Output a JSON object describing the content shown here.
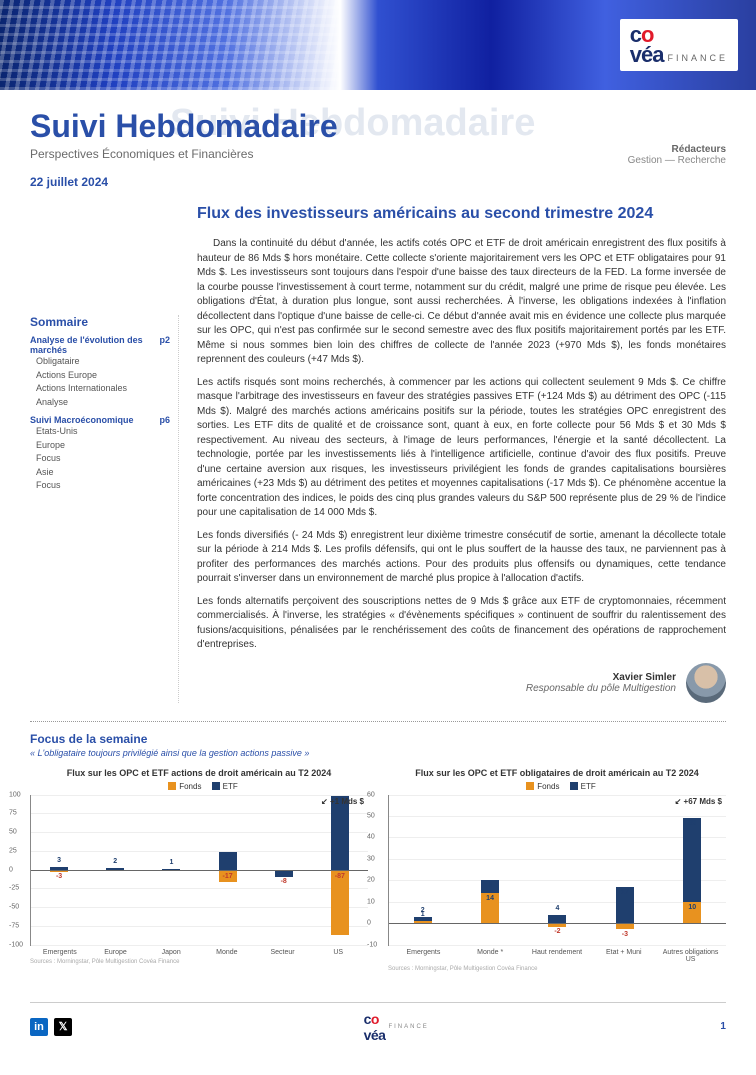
{
  "brand": {
    "name": "covéa",
    "suffix": "FINANCE"
  },
  "header": {
    "title": "Suivi Hebdomadaire",
    "ghost_title": "Suivi Hebdomadaire",
    "subtitle": "Perspectives Économiques et Financières",
    "date": "22 juillet 2024",
    "redacteurs_label": "Rédacteurs",
    "redacteurs_line": "Gestion — Recherche"
  },
  "sidebar": {
    "heading": "Sommaire",
    "sections": [
      {
        "title": "Analyse de l'évolution des marchés",
        "page": "p2",
        "items": [
          "Obligataire",
          "Actions Europe",
          "Actions Internationales",
          "Analyse"
        ]
      },
      {
        "title": "Suivi Macroéconomique",
        "page": "p6",
        "items": [
          "Etats-Unis",
          "Europe",
          "Focus",
          "Asie",
          "Focus"
        ]
      }
    ]
  },
  "article": {
    "title": "Flux des investisseurs américains au second trimestre 2024",
    "paragraphs": [
      "Dans la continuité du début d'année, les actifs cotés OPC et ETF de droit américain enregistrent des flux positifs à hauteur de 86 Mds $ hors monétaire. Cette collecte s'oriente majoritairement vers les OPC et ETF obligataires pour 91 Mds $. Les investisseurs sont toujours dans l'espoir d'une baisse des taux directeurs de la FED. La forme inversée de la courbe pousse l'investissement à court terme, notamment sur du crédit, malgré une prime de risque peu élevée. Les obligations d'État, à duration plus longue, sont aussi recherchées. À l'inverse, les obligations indexées à l'inflation décollectent dans l'optique d'une baisse de celle-ci. Ce début d'année avait mis en évidence une collecte plus marquée sur les OPC, qui n'est pas confirmée sur le second semestre avec des flux positifs majoritairement portés par les ETF. Même si nous sommes bien loin des chiffres de collecte de l'année 2023 (+970 Mds $), les fonds monétaires reprennent des couleurs (+47 Mds $).",
      "Les actifs risqués sont moins recherchés, à commencer par les actions qui collectent seulement 9 Mds $. Ce chiffre masque l'arbitrage des investisseurs en faveur des stratégies passives ETF (+124 Mds $) au détriment des OPC (-115 Mds $). Malgré des marchés actions américains positifs sur la période, toutes les stratégies OPC enregistrent des sorties. Les ETF dits de qualité et de croissance sont, quant à eux, en forte collecte pour 56 Mds $ et 30 Mds $ respectivement. Au niveau des secteurs, à l'image de leurs performances, l'énergie et la santé décollectent. La technologie, portée par les investissements liés à l'intelligence artificielle, continue d'avoir des flux positifs. Preuve d'une certaine aversion aux risques, les investisseurs privilégient les fonds de grandes capitalisations boursières américaines (+23 Mds $) au détriment des petites et moyennes capitalisations (-17 Mds $). Ce phénomène accentue la forte concentration des indices, le poids des cinq plus grandes valeurs du S&P 500 représente plus de 29 % de l'indice pour une capitalisation de 14 000 Mds $.",
      "Les fonds diversifiés (- 24 Mds $) enregistrent leur dixième trimestre consécutif de sortie, amenant la décollecte totale sur la période à 214 Mds $. Les profils défensifs, qui ont le plus souffert de la hausse des taux, ne parviennent pas à profiter des performances des marchés actions. Pour des produits plus offensifs ou dynamiques, cette tendance pourrait s'inverser dans un environnement de marché plus propice à l'allocation d'actifs.",
      "Les fonds alternatifs perçoivent des souscriptions nettes de 9 Mds $ grâce aux ETF de cryptomonnaies, récemment commercialisés. À l'inverse, les stratégies « d'évènements spécifiques » continuent de souffrir du ralentissement des fusions/acquisitions, pénalisées par le renchérissement des coûts de financement des opérations de rapprochement d'entreprises."
    ],
    "author": {
      "name": "Xavier Simler",
      "role": "Responsable du pôle Multigestion"
    }
  },
  "focus": {
    "title": "Focus de la semaine",
    "tagline": "« L'obligataire toujours privilégié ainsi que la gestion actions passive  »",
    "legend": {
      "fonds": "Fonds",
      "etf": "ETF"
    },
    "colors": {
      "fonds": "#e8921f",
      "etf": "#1f3f6e",
      "grid": "#e8e8e8",
      "axis": "#777"
    },
    "chart1": {
      "title": "Flux sur les OPC et ETF actions de droit américain au T2 2024",
      "ylim": [
        -100,
        100
      ],
      "ytick_step": 25,
      "categories": [
        "Emergents",
        "Europe",
        "Japon",
        "Monde",
        "Secteur",
        "US"
      ],
      "fonds": [
        -3,
        0,
        0,
        -17,
        -2,
        -87
      ],
      "etf": [
        3,
        2,
        1,
        23,
        -8,
        98
      ],
      "annotation": "+1 Mds $",
      "annotation_cat": 3,
      "source": "Sources : Morningstar, Pôle Multigestion Covéa Finance"
    },
    "chart2": {
      "title": "Flux sur les OPC et ETF obligataires de droit américain au T2 2024",
      "ylim": [
        -10,
        60
      ],
      "ytick_step": 10,
      "categories": [
        "Emergents",
        "Monde *",
        "Haut rendement",
        "Etat + Muni",
        "Autres obligations US"
      ],
      "fonds": [
        1,
        14,
        -2,
        -3,
        10
      ],
      "etf": [
        2,
        6,
        4,
        17,
        39
      ],
      "annotation": "+67 Mds $",
      "annotation_cat": 4,
      "source": "Sources : Morningstar, Pôle Multigestion Covéa Finance"
    }
  },
  "footer": {
    "page": "1"
  }
}
